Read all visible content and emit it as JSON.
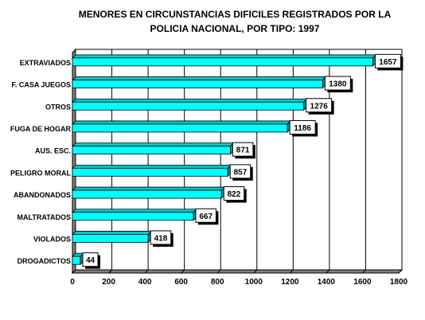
{
  "chart_data": {
    "type": "bar",
    "orientation": "horizontal",
    "title_lines": [
      "MENORES EN CIRCUNSTANCIAS DIFICILES REGISTRADOS POR LA",
      "POLICIA NACIONAL, POR TIPO: 1997"
    ],
    "categories": [
      "EXTRAVIADOS",
      "F. CASA JUEGOS",
      "OTROS",
      "FUGA DE HOGAR",
      "AUS. ESC.",
      "PELIGRO MORAL",
      "ABANDONADOS",
      "MALTRATADOS",
      "VIOLADOS",
      "DROGADICTOS"
    ],
    "values": [
      1657,
      1380,
      1276,
      1186,
      871,
      857,
      822,
      667,
      418,
      44
    ],
    "data_labels": [
      "1657",
      "1380",
      "1276",
      "1186",
      "871",
      "857",
      "822",
      "667",
      "418",
      "44"
    ],
    "xlim": [
      0,
      1800
    ],
    "x_ticks": [
      "0",
      "200",
      "400",
      "600",
      "800",
      "1000",
      "1200",
      "1400",
      "1600",
      "1800"
    ],
    "grid": "vertical",
    "legend": "none",
    "colors": {
      "bar": "#00ffff",
      "bar_edge": "#000000",
      "floor": "#808080",
      "label_box": "#ffffff"
    }
  }
}
